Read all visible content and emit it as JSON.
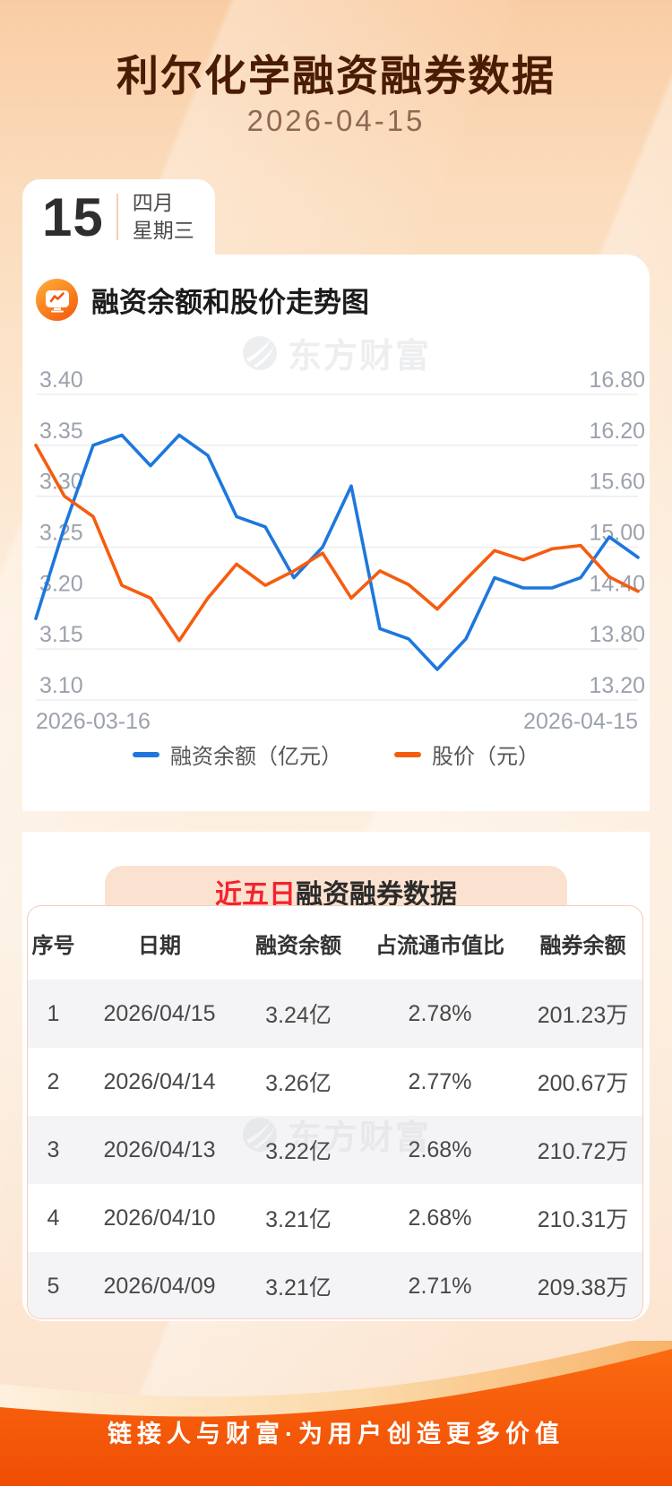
{
  "header": {
    "title": "利尔化学融资融券数据",
    "date": "2026-04-15"
  },
  "date_card": {
    "day": "15",
    "month": "四月",
    "weekday": "星期三"
  },
  "chart_section": {
    "title": "融资余额和股价走势图",
    "icon": "chart-monitor-icon"
  },
  "brand_watermark": {
    "text": "东方财富"
  },
  "chart_data": {
    "type": "line",
    "title": "融资余额和股价走势图",
    "x_labels": [
      "2026-03-16",
      "2026-04-15"
    ],
    "grid": true,
    "legend_position": "bottom",
    "left_axis": {
      "min": 3.1,
      "max": 3.4,
      "ticks": [
        "3.40",
        "3.35",
        "3.30",
        "3.25",
        "3.20",
        "3.15",
        "3.10"
      ]
    },
    "right_axis": {
      "min": 13.2,
      "max": 16.8,
      "ticks": [
        "16.80",
        "16.20",
        "15.60",
        "15.00",
        "14.40",
        "13.80",
        "13.20"
      ]
    },
    "series": [
      {
        "name": "融资余额（亿元）",
        "axis": "left",
        "color": "#1E77DC",
        "values": [
          3.18,
          3.27,
          3.35,
          3.36,
          3.33,
          3.36,
          3.34,
          3.28,
          3.27,
          3.22,
          3.25,
          3.31,
          3.17,
          3.16,
          3.13,
          3.16,
          3.22,
          3.21,
          3.21,
          3.22,
          3.26,
          3.24
        ]
      },
      {
        "name": "股价（元）",
        "axis": "right",
        "color": "#F65C0E",
        "values": [
          16.2,
          15.6,
          15.36,
          14.55,
          14.4,
          13.9,
          14.4,
          14.8,
          14.55,
          14.72,
          14.93,
          14.4,
          14.72,
          14.56,
          14.27,
          14.62,
          14.96,
          14.85,
          14.98,
          15.02,
          14.65,
          14.48
        ]
      }
    ]
  },
  "table_section": {
    "title_highlight": "近五日",
    "title_rest": "融资融券数据",
    "columns": [
      "序号",
      "日期",
      "融资余额",
      "占流通市值比",
      "融券余额"
    ],
    "rows": [
      [
        "1",
        "2026/04/15",
        "3.24亿",
        "2.78%",
        "201.23万"
      ],
      [
        "2",
        "2026/04/14",
        "3.26亿",
        "2.77%",
        "200.67万"
      ],
      [
        "3",
        "2026/04/13",
        "3.22亿",
        "2.68%",
        "210.72万"
      ],
      [
        "4",
        "2026/04/10",
        "3.21亿",
        "2.68%",
        "210.31万"
      ],
      [
        "5",
        "2026/04/09",
        "3.21亿",
        "2.71%",
        "209.38万"
      ]
    ]
  },
  "footer": {
    "slogan": "链接人与财富·为用户创造更多价值"
  },
  "colors": {
    "title_brown": "#4a1c03",
    "accent_orange": "#F4560A",
    "line_blue": "#1E77DC",
    "line_orange": "#F65C0E",
    "highlight_red": "#F5222D",
    "tab_peach": "#fbe2d0",
    "row_stripe": "#f4f4f6"
  }
}
